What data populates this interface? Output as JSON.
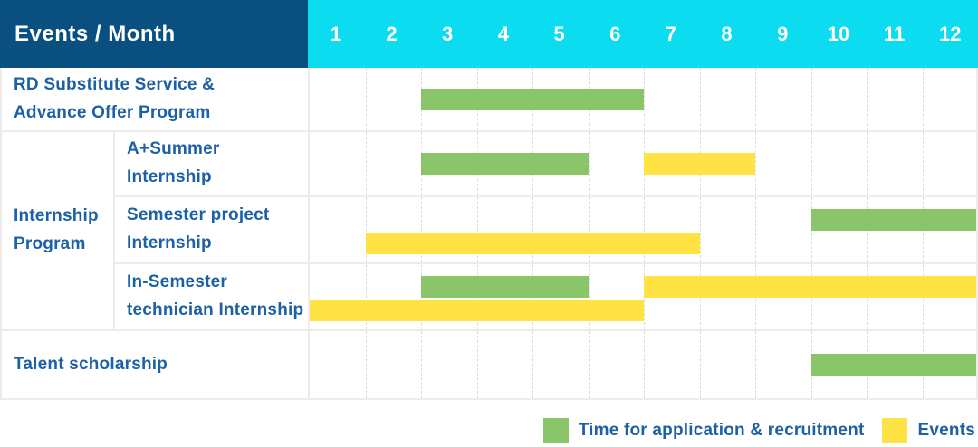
{
  "colors": {
    "header_bg": "#094F80",
    "months_bg": "#0CDCF0",
    "label_text": "#1C60A6",
    "green": "#8BC56A",
    "yellow": "#FFE345",
    "grid_line": "#DCDCDC",
    "row_border": "#ECECEC"
  },
  "chart_data": {
    "type": "gantt",
    "header": "Events / Month",
    "months": [
      "1",
      "2",
      "3",
      "4",
      "5",
      "6",
      "7",
      "8",
      "9",
      "10",
      "11",
      "12"
    ],
    "x_range": [
      1,
      12
    ],
    "grid": "dashed-vertical-per-month",
    "group_label": {
      "id": "internship-program",
      "lines": [
        "Internship",
        "Program"
      ],
      "spans_rows": [
        2,
        3,
        4
      ]
    },
    "rows": [
      {
        "id": "rd-substitute",
        "label_lines": [
          "RD Substitute Service &",
          "Advance Offer Program"
        ],
        "in_group": false,
        "bars": [
          {
            "type": "application",
            "color": "green",
            "start_month": 3,
            "end_month": 6,
            "level": "middle"
          }
        ]
      },
      {
        "id": "a-plus-summer-internship",
        "label_lines": [
          "A+Summer",
          "Internship"
        ],
        "in_group": true,
        "bars": [
          {
            "type": "application",
            "color": "green",
            "start_month": 3,
            "end_month": 5,
            "level": "middle"
          },
          {
            "type": "event",
            "color": "yellow",
            "start_month": 7,
            "end_month": 8,
            "level": "middle"
          }
        ]
      },
      {
        "id": "semester-project-internship",
        "label_lines": [
          "Semester project",
          "Internship"
        ],
        "in_group": true,
        "bars": [
          {
            "type": "application",
            "color": "green",
            "start_month": 10,
            "end_month": 12,
            "level": "top"
          },
          {
            "type": "event",
            "color": "yellow",
            "start_month": 2,
            "end_month": 7,
            "level": "bottom"
          }
        ]
      },
      {
        "id": "in-semester-technician-internship",
        "label_lines": [
          "In-Semester",
          "technician Internship"
        ],
        "in_group": true,
        "bars": [
          {
            "type": "application",
            "color": "green",
            "start_month": 3,
            "end_month": 5,
            "level": "top"
          },
          {
            "type": "event",
            "color": "yellow",
            "start_month": 7,
            "end_month": 12,
            "level": "top"
          },
          {
            "type": "event",
            "color": "yellow",
            "start_month": 1,
            "end_month": 6,
            "level": "bottom"
          }
        ]
      },
      {
        "id": "talent-scholarship",
        "label_lines": [
          "Talent scholarship"
        ],
        "in_group": false,
        "bars": [
          {
            "type": "application",
            "color": "green",
            "start_month": 10,
            "end_month": 12,
            "level": "middle"
          }
        ]
      }
    ],
    "legend": {
      "items": [
        {
          "key": "application",
          "color": "green",
          "label": "Time for application & recruitment"
        },
        {
          "key": "event",
          "color": "yellow",
          "label": "Events"
        }
      ],
      "position": "bottom-right"
    }
  }
}
